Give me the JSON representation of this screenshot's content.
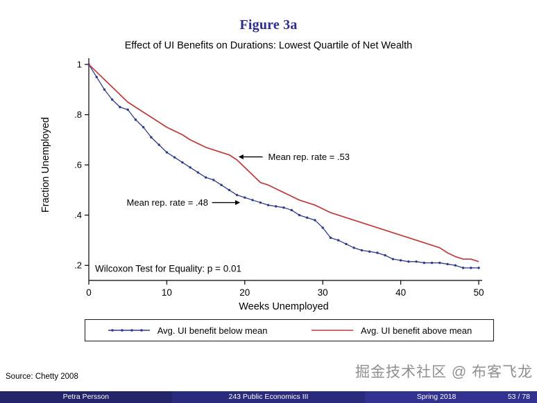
{
  "slide": {
    "title": "Figure 3a",
    "source": "Source:  Chetty 2008",
    "watermark": "掘金技术社区 @ 布客飞龙",
    "footer": {
      "author": "Petra Persson",
      "course": "243 Public Economics III",
      "term": "Spring 2018",
      "page": "53 / 78"
    },
    "colors": {
      "title": "#2d2d8f",
      "footer": [
        "#24246b",
        "#2a2a7d",
        "#31318f"
      ]
    }
  },
  "chart_data": {
    "type": "line",
    "title": "Effect of UI Benefits on Durations: Lowest Quartile of Net Wealth",
    "xlabel": "Weeks Unemployed",
    "ylabel": "Fraction Unemployed",
    "xlim": [
      0,
      50
    ],
    "ylim": [
      0.14,
      1.025
    ],
    "xticks": [
      0,
      10,
      20,
      30,
      40,
      50
    ],
    "yticks": [
      1,
      0.8,
      0.6,
      0.4,
      0.2
    ],
    "ytick_labels": [
      "1",
      ".8",
      ".6",
      ".4",
      ".2"
    ],
    "grid": false,
    "legend_position": "bottom",
    "x": [
      0,
      1,
      2,
      3,
      4,
      5,
      6,
      7,
      8,
      9,
      10,
      11,
      12,
      13,
      14,
      15,
      16,
      17,
      18,
      19,
      20,
      21,
      22,
      23,
      24,
      25,
      26,
      27,
      28,
      29,
      30,
      31,
      32,
      33,
      34,
      35,
      36,
      37,
      38,
      39,
      40,
      41,
      42,
      43,
      44,
      45,
      46,
      47,
      48,
      49,
      50
    ],
    "series": [
      {
        "name": "Avg. UI benefit below mean",
        "color": "#2d3a8c",
        "marker": true,
        "values": [
          1.0,
          0.95,
          0.9,
          0.86,
          0.83,
          0.82,
          0.78,
          0.75,
          0.71,
          0.68,
          0.65,
          0.63,
          0.61,
          0.59,
          0.57,
          0.55,
          0.54,
          0.52,
          0.5,
          0.48,
          0.47,
          0.46,
          0.45,
          0.44,
          0.435,
          0.43,
          0.42,
          0.4,
          0.39,
          0.38,
          0.35,
          0.31,
          0.3,
          0.285,
          0.27,
          0.26,
          0.255,
          0.25,
          0.24,
          0.225,
          0.22,
          0.215,
          0.215,
          0.21,
          0.21,
          0.21,
          0.205,
          0.2,
          0.19,
          0.19,
          0.19
        ]
      },
      {
        "name": "Avg. UI benefit above mean",
        "color": "#bb3a3c",
        "marker": false,
        "values": [
          1.0,
          0.97,
          0.94,
          0.91,
          0.88,
          0.85,
          0.83,
          0.81,
          0.79,
          0.77,
          0.75,
          0.735,
          0.72,
          0.7,
          0.685,
          0.67,
          0.66,
          0.65,
          0.64,
          0.62,
          0.59,
          0.56,
          0.53,
          0.52,
          0.505,
          0.49,
          0.475,
          0.46,
          0.45,
          0.44,
          0.425,
          0.41,
          0.4,
          0.39,
          0.38,
          0.37,
          0.36,
          0.35,
          0.34,
          0.33,
          0.32,
          0.31,
          0.3,
          0.29,
          0.28,
          0.27,
          0.25,
          0.235,
          0.225,
          0.225,
          0.215
        ]
      }
    ],
    "annotations": [
      {
        "text": "Mean rep. rate = .53",
        "y": 0.632,
        "text_x": 23.0,
        "anchor": "start",
        "arrow_tail_x": 22.3,
        "arrow_head_x": 19.2
      },
      {
        "text": "Mean rep. rate = .48",
        "y": 0.45,
        "text_x": 15.3,
        "anchor": "end",
        "arrow_tail_x": 15.8,
        "arrow_head_x": 19.4
      }
    ],
    "note": {
      "text": "Wilcoxon Test for Equality: p = 0.01",
      "x": 0.8,
      "y": 0.185
    }
  }
}
